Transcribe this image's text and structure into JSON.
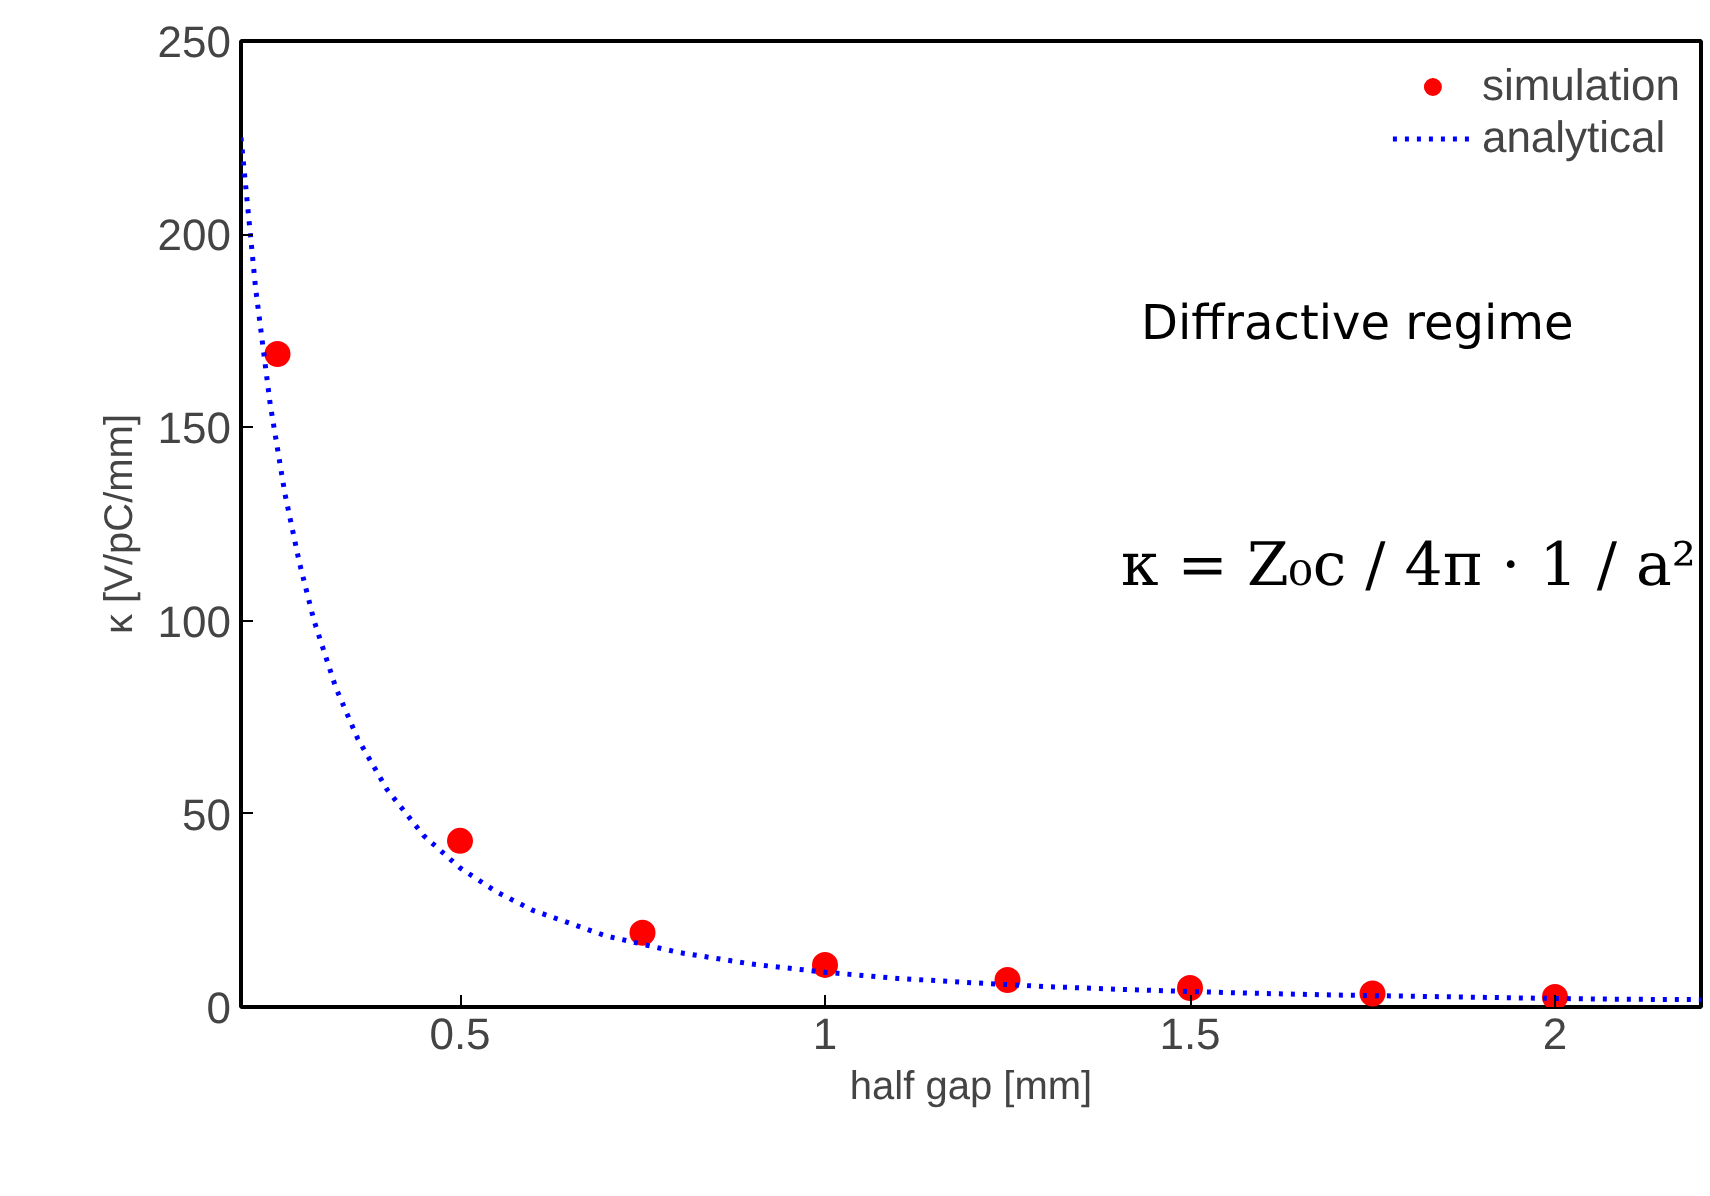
{
  "chart_data": {
    "type": "scatter",
    "xlabel": "half gap [mm]",
    "ylabel": "κ [V/pC/mm]",
    "xlim": [
      0.2,
      2.2
    ],
    "ylim": [
      0,
      250
    ],
    "xticks": [
      0.5,
      1,
      1.5,
      2
    ],
    "yticks": [
      0,
      50,
      100,
      150,
      200,
      250
    ],
    "grid": false,
    "legend": "top right",
    "series": [
      {
        "name": "simulation",
        "marker": "circle",
        "color": "#ff0000",
        "x": [
          0.25,
          0.5,
          0.75,
          1,
          1.25,
          1.5,
          1.75,
          2
        ],
        "values": [
          169,
          43,
          19.2,
          10.9,
          7.0,
          4.9,
          3.5,
          2.6
        ]
      },
      {
        "name": "analytical",
        "type": "line",
        "line_style": "dotted",
        "color": "#0000ff",
        "x": [
          0.2,
          0.22,
          0.24,
          0.26,
          0.28,
          0.3,
          0.33,
          0.36,
          0.4,
          0.45,
          0.5,
          0.55,
          0.6,
          0.7,
          0.8,
          0.9,
          1.0,
          1.1,
          1.2,
          1.3,
          1.4,
          1.5,
          1.6,
          1.7,
          1.8,
          1.9,
          2.0,
          2.1,
          2.2
        ],
        "values": [
          225,
          186,
          156,
          133,
          115,
          100,
          82.6,
          69.4,
          56.3,
          44.4,
          36,
          29.8,
          25,
          18.4,
          14.1,
          11.1,
          9,
          7.4,
          6.3,
          5.3,
          4.6,
          4,
          3.5,
          3.1,
          2.8,
          2.5,
          2.2,
          2.0,
          1.9
        ]
      }
    ],
    "annotations": [
      "Diffractive regime",
      "κ = Z₀c / 4π · 1 / a²"
    ]
  }
}
